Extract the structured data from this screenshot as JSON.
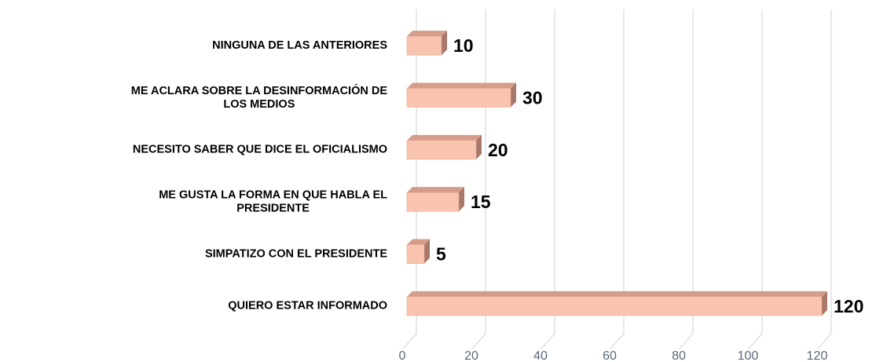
{
  "chart_data": {
    "type": "bar",
    "orientation": "horizontal",
    "categories": [
      "NINGUNA DE LAS ANTERIORES",
      "ME ACLARA SOBRE LA DESINFORMACIÓN DE LOS MEDIOS",
      "NECESITO SABER QUE DICE EL OFICIALISMO",
      "ME GUSTA LA FORMA EN QUE HABLA EL PRESIDENTE",
      "SIMPATIZO CON EL PRESIDENTE",
      "QUIERO ESTAR INFORMADO"
    ],
    "values": [
      10,
      30,
      20,
      15,
      5,
      120
    ],
    "color": "#f8c4b0",
    "xlim": [
      0,
      120
    ],
    "xticks": [
      0,
      20,
      40,
      60,
      80,
      100,
      120
    ],
    "grid": true
  }
}
